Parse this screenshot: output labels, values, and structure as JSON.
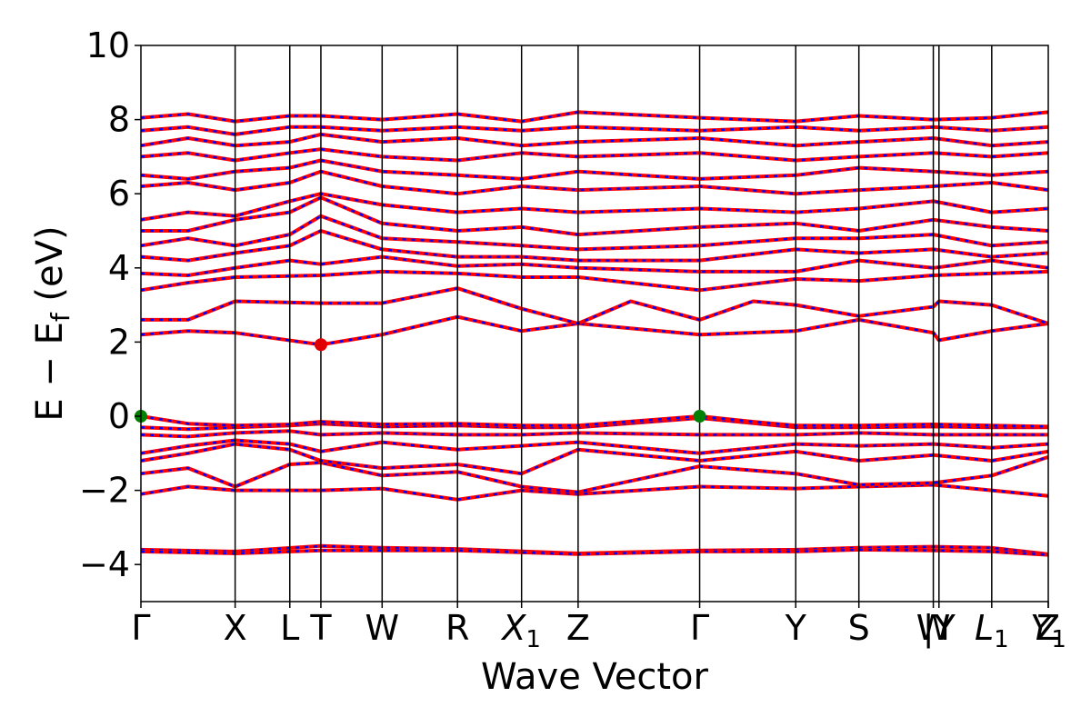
{
  "chart_data": {
    "type": "line",
    "xlabel": "Wave Vector",
    "ylabel_main": "E − E",
    "ylabel_sub": "f",
    "ylabel_tail": " (eV)",
    "ylim": [
      -5,
      10
    ],
    "yticks": [
      -4,
      -2,
      0,
      2,
      4,
      6,
      8,
      10
    ],
    "grid": false,
    "legend": "none",
    "kpoints": [
      {
        "label": "Γ",
        "pos": 0.0
      },
      {
        "label": "X",
        "pos": 1.0
      },
      {
        "label": "L",
        "pos": 1.58
      },
      {
        "label": "T",
        "pos": 1.91
      },
      {
        "label": "W",
        "pos": 2.56
      },
      {
        "label": "R",
        "pos": 3.36
      },
      {
        "label": "X",
        "sub": "1",
        "pos": 4.04
      },
      {
        "label": "Z",
        "pos": 4.64
      },
      {
        "label": "Γ",
        "pos": 5.93
      },
      {
        "label": "Y",
        "pos": 6.95
      },
      {
        "label": "S",
        "pos": 7.62
      },
      {
        "label": "W",
        "pos": 8.41
      },
      {
        "label": "|Y",
        "pos": 8.47
      },
      {
        "label": "L",
        "sub": "1",
        "pos": 9.03
      },
      {
        "label": "Y",
        "sub": "1",
        "pos": 9.63
      },
      {
        "label": "Z",
        "pos": 9.68
      }
    ],
    "x_range": [
      0.0,
      9.63
    ],
    "special_points": [
      {
        "name": "VBM",
        "x": 0.0,
        "y": 0.0,
        "color": "#008000"
      },
      {
        "name": "VBM",
        "x": 5.93,
        "y": 0.0,
        "color": "#008000"
      },
      {
        "name": "CBM",
        "x": 1.91,
        "y": 1.93,
        "color": "#e00000"
      }
    ],
    "series_colors": {
      "spin_up": "#ff0000",
      "spin_down": "#0000ff"
    },
    "bands": [
      [
        [
          0,
          -3.6
        ],
        [
          1.0,
          -3.65
        ],
        [
          1.91,
          -3.5
        ],
        [
          2.56,
          -3.55
        ],
        [
          3.36,
          -3.58
        ],
        [
          4.64,
          -3.7
        ],
        [
          5.93,
          -3.62
        ],
        [
          6.95,
          -3.6
        ],
        [
          7.62,
          -3.55
        ],
        [
          8.41,
          -3.52
        ],
        [
          9.03,
          -3.55
        ],
        [
          9.63,
          -3.72
        ]
      ],
      [
        [
          0,
          -3.65
        ],
        [
          1.0,
          -3.7
        ],
        [
          1.91,
          -3.62
        ],
        [
          2.56,
          -3.62
        ],
        [
          3.36,
          -3.62
        ],
        [
          4.64,
          -3.72
        ],
        [
          5.93,
          -3.65
        ],
        [
          6.95,
          -3.65
        ],
        [
          7.62,
          -3.6
        ],
        [
          8.41,
          -3.62
        ],
        [
          9.03,
          -3.65
        ],
        [
          9.63,
          -3.74
        ]
      ],
      [
        [
          0,
          -2.1
        ],
        [
          0.5,
          -1.9
        ],
        [
          1.0,
          -2.0
        ],
        [
          1.91,
          -2.0
        ],
        [
          2.56,
          -1.95
        ],
        [
          3.36,
          -2.25
        ],
        [
          4.04,
          -2.0
        ],
        [
          4.64,
          -2.1
        ],
        [
          5.93,
          -1.9
        ],
        [
          6.95,
          -1.95
        ],
        [
          7.62,
          -1.9
        ],
        [
          8.41,
          -1.85
        ],
        [
          9.03,
          -2.0
        ],
        [
          9.63,
          -2.15
        ]
      ],
      [
        [
          0,
          -1.55
        ],
        [
          0.5,
          -1.4
        ],
        [
          1.0,
          -1.9
        ],
        [
          1.58,
          -1.3
        ],
        [
          1.91,
          -1.25
        ],
        [
          2.56,
          -1.6
        ],
        [
          3.36,
          -1.5
        ],
        [
          4.04,
          -1.9
        ],
        [
          4.64,
          -2.05
        ],
        [
          5.93,
          -1.35
        ],
        [
          6.95,
          -1.55
        ],
        [
          7.62,
          -1.85
        ],
        [
          8.41,
          -1.8
        ],
        [
          9.03,
          -1.6
        ],
        [
          9.63,
          -1.1
        ]
      ],
      [
        [
          0,
          -1.2
        ],
        [
          0.5,
          -1.0
        ],
        [
          1.0,
          -0.75
        ],
        [
          1.58,
          -0.9
        ],
        [
          1.91,
          -1.2
        ],
        [
          2.56,
          -1.4
        ],
        [
          3.36,
          -1.3
        ],
        [
          4.04,
          -1.55
        ],
        [
          4.64,
          -0.9
        ],
        [
          5.93,
          -1.2
        ],
        [
          6.95,
          -0.95
        ],
        [
          7.62,
          -1.2
        ],
        [
          8.41,
          -1.05
        ],
        [
          9.03,
          -1.2
        ],
        [
          9.63,
          -0.95
        ]
      ],
      [
        [
          0,
          -1.0
        ],
        [
          0.5,
          -0.8
        ],
        [
          1.0,
          -0.65
        ],
        [
          1.58,
          -0.75
        ],
        [
          1.91,
          -0.95
        ],
        [
          2.56,
          -0.7
        ],
        [
          3.36,
          -0.9
        ],
        [
          4.04,
          -0.8
        ],
        [
          4.64,
          -0.7
        ],
        [
          5.93,
          -1.0
        ],
        [
          6.95,
          -0.75
        ],
        [
          7.62,
          -0.8
        ],
        [
          8.41,
          -0.75
        ],
        [
          9.03,
          -0.85
        ],
        [
          9.63,
          -0.75
        ]
      ],
      [
        [
          0,
          -0.5
        ],
        [
          0.5,
          -0.55
        ],
        [
          1.0,
          -0.45
        ],
        [
          1.58,
          -0.4
        ],
        [
          1.91,
          -0.5
        ],
        [
          2.56,
          -0.45
        ],
        [
          3.36,
          -0.5
        ],
        [
          4.04,
          -0.5
        ],
        [
          4.64,
          -0.45
        ],
        [
          5.93,
          -0.5
        ],
        [
          6.95,
          -0.5
        ],
        [
          7.62,
          -0.45
        ],
        [
          8.41,
          -0.5
        ],
        [
          9.03,
          -0.5
        ],
        [
          9.63,
          -0.5
        ]
      ],
      [
        [
          0,
          -0.3
        ],
        [
          0.5,
          -0.35
        ],
        [
          1.0,
          -0.3
        ],
        [
          1.58,
          -0.25
        ],
        [
          1.91,
          -0.2
        ],
        [
          2.56,
          -0.28
        ],
        [
          3.36,
          -0.25
        ],
        [
          4.04,
          -0.3
        ],
        [
          4.64,
          -0.3
        ],
        [
          5.93,
          -0.05
        ],
        [
          6.95,
          -0.3
        ],
        [
          7.62,
          -0.3
        ],
        [
          8.41,
          -0.28
        ],
        [
          9.03,
          -0.3
        ],
        [
          9.63,
          -0.3
        ]
      ],
      [
        [
          0,
          0.0
        ],
        [
          0.5,
          -0.2
        ],
        [
          1.0,
          -0.25
        ],
        [
          1.58,
          -0.22
        ],
        [
          1.91,
          -0.15
        ],
        [
          2.56,
          -0.22
        ],
        [
          3.36,
          -0.2
        ],
        [
          4.04,
          -0.25
        ],
        [
          4.64,
          -0.25
        ],
        [
          5.93,
          0.0
        ],
        [
          6.5,
          -0.15
        ],
        [
          6.95,
          -0.25
        ],
        [
          7.62,
          -0.25
        ],
        [
          8.41,
          -0.22
        ],
        [
          9.03,
          -0.25
        ],
        [
          9.63,
          -0.28
        ]
      ],
      [
        [
          0,
          2.2
        ],
        [
          0.5,
          2.3
        ],
        [
          1.0,
          2.25
        ],
        [
          1.91,
          1.93
        ],
        [
          2.56,
          2.2
        ],
        [
          3.36,
          2.68
        ],
        [
          4.04,
          2.3
        ],
        [
          4.64,
          2.5
        ],
        [
          5.93,
          2.2
        ],
        [
          6.95,
          2.3
        ],
        [
          7.62,
          2.6
        ],
        [
          8.41,
          2.25
        ],
        [
          8.47,
          2.05
        ],
        [
          9.03,
          2.3
        ],
        [
          9.63,
          2.5
        ]
      ],
      [
        [
          0,
          2.6
        ],
        [
          0.5,
          2.6
        ],
        [
          1.0,
          3.1
        ],
        [
          1.91,
          3.05
        ],
        [
          2.56,
          3.05
        ],
        [
          3.36,
          3.45
        ],
        [
          4.04,
          2.9
        ],
        [
          4.64,
          2.5
        ],
        [
          5.2,
          3.1
        ],
        [
          5.93,
          2.6
        ],
        [
          6.5,
          3.1
        ],
        [
          6.95,
          3.0
        ],
        [
          7.62,
          2.7
        ],
        [
          8.41,
          2.95
        ],
        [
          8.47,
          3.1
        ],
        [
          9.03,
          3.0
        ],
        [
          9.63,
          2.5
        ]
      ],
      [
        [
          0,
          3.4
        ],
        [
          0.5,
          3.6
        ],
        [
          1.0,
          3.75
        ],
        [
          1.91,
          3.8
        ],
        [
          2.56,
          3.9
        ],
        [
          3.36,
          3.85
        ],
        [
          4.04,
          3.75
        ],
        [
          4.64,
          3.75
        ],
        [
          5.93,
          3.4
        ],
        [
          6.95,
          3.7
        ],
        [
          7.62,
          3.65
        ],
        [
          8.41,
          3.8
        ],
        [
          9.03,
          3.85
        ],
        [
          9.63,
          3.9
        ]
      ],
      [
        [
          0,
          3.85
        ],
        [
          0.5,
          3.8
        ],
        [
          1.0,
          4.0
        ],
        [
          1.58,
          4.2
        ],
        [
          1.91,
          4.1
        ],
        [
          2.56,
          4.3
        ],
        [
          3.36,
          4.05
        ],
        [
          4.04,
          4.1
        ],
        [
          4.64,
          4.0
        ],
        [
          5.93,
          3.9
        ],
        [
          6.95,
          3.9
        ],
        [
          7.62,
          4.2
        ],
        [
          8.41,
          4.0
        ],
        [
          9.03,
          4.2
        ],
        [
          9.63,
          4.0
        ]
      ],
      [
        [
          0,
          4.3
        ],
        [
          0.5,
          4.2
        ],
        [
          1.0,
          4.4
        ],
        [
          1.58,
          4.6
        ],
        [
          1.91,
          5.0
        ],
        [
          2.56,
          4.5
        ],
        [
          3.36,
          4.3
        ],
        [
          4.04,
          4.3
        ],
        [
          4.64,
          4.2
        ],
        [
          5.93,
          4.2
        ],
        [
          6.95,
          4.5
        ],
        [
          7.62,
          4.4
        ],
        [
          8.41,
          4.5
        ],
        [
          9.03,
          4.3
        ],
        [
          9.63,
          4.4
        ]
      ],
      [
        [
          0,
          4.6
        ],
        [
          0.5,
          4.8
        ],
        [
          1.0,
          4.6
        ],
        [
          1.58,
          4.9
        ],
        [
          1.91,
          5.4
        ],
        [
          2.56,
          4.8
        ],
        [
          3.36,
          4.7
        ],
        [
          4.04,
          4.6
        ],
        [
          4.64,
          4.5
        ],
        [
          5.93,
          4.6
        ],
        [
          6.95,
          4.8
        ],
        [
          7.62,
          4.8
        ],
        [
          8.41,
          4.9
        ],
        [
          9.03,
          4.6
        ],
        [
          9.63,
          4.7
        ]
      ],
      [
        [
          0,
          5.0
        ],
        [
          0.5,
          5.0
        ],
        [
          1.0,
          5.3
        ],
        [
          1.58,
          5.5
        ],
        [
          1.91,
          5.9
        ],
        [
          2.56,
          5.2
        ],
        [
          3.36,
          5.0
        ],
        [
          4.04,
          5.1
        ],
        [
          4.64,
          4.9
        ],
        [
          5.93,
          5.1
        ],
        [
          6.95,
          5.2
        ],
        [
          7.62,
          5.0
        ],
        [
          8.41,
          5.3
        ],
        [
          9.03,
          5.1
        ],
        [
          9.63,
          5.0
        ]
      ],
      [
        [
          0,
          5.3
        ],
        [
          0.5,
          5.5
        ],
        [
          1.0,
          5.4
        ],
        [
          1.58,
          5.8
        ],
        [
          1.91,
          6.0
        ],
        [
          2.56,
          5.7
        ],
        [
          3.36,
          5.5
        ],
        [
          4.04,
          5.6
        ],
        [
          4.64,
          5.5
        ],
        [
          5.93,
          5.6
        ],
        [
          6.95,
          5.5
        ],
        [
          7.62,
          5.6
        ],
        [
          8.41,
          5.8
        ],
        [
          9.03,
          5.5
        ],
        [
          9.63,
          5.6
        ]
      ],
      [
        [
          0,
          6.2
        ],
        [
          0.5,
          6.3
        ],
        [
          1.0,
          6.1
        ],
        [
          1.58,
          6.3
        ],
        [
          1.91,
          6.6
        ],
        [
          2.56,
          6.2
        ],
        [
          3.36,
          6.0
        ],
        [
          4.04,
          6.2
        ],
        [
          4.64,
          6.1
        ],
        [
          5.93,
          6.2
        ],
        [
          6.95,
          6.0
        ],
        [
          7.62,
          6.1
        ],
        [
          8.41,
          6.2
        ],
        [
          9.03,
          6.3
        ],
        [
          9.63,
          6.1
        ]
      ],
      [
        [
          0,
          6.5
        ],
        [
          0.5,
          6.4
        ],
        [
          1.0,
          6.6
        ],
        [
          1.58,
          6.7
        ],
        [
          1.91,
          6.9
        ],
        [
          2.56,
          6.6
        ],
        [
          3.36,
          6.5
        ],
        [
          4.04,
          6.4
        ],
        [
          4.64,
          6.6
        ],
        [
          5.93,
          6.4
        ],
        [
          6.95,
          6.5
        ],
        [
          7.62,
          6.7
        ],
        [
          8.41,
          6.6
        ],
        [
          9.03,
          6.5
        ],
        [
          9.63,
          6.6
        ]
      ],
      [
        [
          0,
          7.0
        ],
        [
          0.5,
          7.1
        ],
        [
          1.0,
          6.9
        ],
        [
          1.58,
          7.1
        ],
        [
          1.91,
          7.2
        ],
        [
          2.56,
          7.0
        ],
        [
          3.36,
          6.9
        ],
        [
          4.04,
          7.1
        ],
        [
          4.64,
          7.0
        ],
        [
          5.93,
          7.1
        ],
        [
          6.95,
          6.9
        ],
        [
          7.62,
          7.0
        ],
        [
          8.41,
          7.1
        ],
        [
          9.03,
          7.0
        ],
        [
          9.63,
          7.1
        ]
      ],
      [
        [
          0,
          7.3
        ],
        [
          0.5,
          7.5
        ],
        [
          1.0,
          7.3
        ],
        [
          1.58,
          7.4
        ],
        [
          1.91,
          7.6
        ],
        [
          2.56,
          7.4
        ],
        [
          3.36,
          7.5
        ],
        [
          4.04,
          7.3
        ],
        [
          4.64,
          7.4
        ],
        [
          5.93,
          7.5
        ],
        [
          6.95,
          7.3
        ],
        [
          7.62,
          7.4
        ],
        [
          8.41,
          7.5
        ],
        [
          9.03,
          7.3
        ],
        [
          9.63,
          7.4
        ]
      ],
      [
        [
          0,
          7.7
        ],
        [
          0.5,
          7.8
        ],
        [
          1.0,
          7.6
        ],
        [
          1.58,
          7.8
        ],
        [
          1.91,
          7.8
        ],
        [
          2.56,
          7.7
        ],
        [
          3.36,
          7.8
        ],
        [
          4.04,
          7.7
        ],
        [
          4.64,
          7.8
        ],
        [
          5.93,
          7.7
        ],
        [
          6.95,
          7.8
        ],
        [
          7.62,
          7.7
        ],
        [
          8.41,
          7.8
        ],
        [
          9.03,
          7.7
        ],
        [
          9.63,
          7.8
        ]
      ],
      [
        [
          0,
          8.05
        ],
        [
          0.5,
          8.15
        ],
        [
          1.0,
          7.95
        ],
        [
          1.58,
          8.1
        ],
        [
          1.91,
          8.1
        ],
        [
          2.56,
          8.0
        ],
        [
          3.36,
          8.15
        ],
        [
          4.04,
          7.95
        ],
        [
          4.64,
          8.2
        ],
        [
          5.93,
          8.05
        ],
        [
          6.95,
          7.95
        ],
        [
          7.62,
          8.1
        ],
        [
          8.41,
          8.0
        ],
        [
          9.03,
          8.05
        ],
        [
          9.63,
          8.2
        ]
      ]
    ]
  }
}
